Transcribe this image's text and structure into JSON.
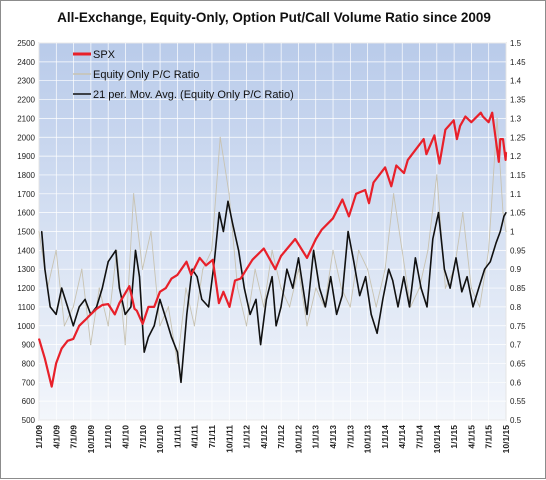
{
  "chart_data": {
    "type": "line",
    "title": "All-Exchange, Equity-Only, Option Put/Call Volume Ratio since 2009",
    "y_left": {
      "min": 500,
      "max": 2500,
      "step": 100
    },
    "y_right": {
      "min": 0.5,
      "max": 1.5,
      "step": 0.05
    },
    "x_start": "2009-01-01",
    "x_end": "2015-10-01",
    "x_tick_labels": [
      "1/1/09",
      "4/1/09",
      "7/1/09",
      "10/1/09",
      "1/1/10",
      "4/1/10",
      "7/1/10",
      "10/1/10",
      "1/1/11",
      "4/1/11",
      "7/1/11",
      "10/1/11",
      "1/1/12",
      "4/1/12",
      "7/1/12",
      "10/1/12",
      "1/1/13",
      "4/1/13",
      "7/1/13",
      "10/1/13",
      "1/1/14",
      "4/1/14",
      "7/1/14",
      "10/1/14",
      "1/1/15",
      "4/1/15",
      "7/1/15",
      "10/1/15"
    ],
    "grid": true,
    "legend_position": "top-left",
    "series": [
      {
        "name": "SPX",
        "axis": "left",
        "color": "#e8202a",
        "x": [
          "2009-01-01",
          "2009-02-01",
          "2009-03-09",
          "2009-04-01",
          "2009-05-01",
          "2009-06-01",
          "2009-07-01",
          "2009-08-01",
          "2009-09-01",
          "2009-10-01",
          "2009-11-01",
          "2009-12-01",
          "2010-01-01",
          "2010-02-05",
          "2010-03-01",
          "2010-04-23",
          "2010-05-20",
          "2010-06-01",
          "2010-07-02",
          "2010-08-01",
          "2010-09-01",
          "2010-10-01",
          "2010-11-01",
          "2010-12-01",
          "2011-01-01",
          "2011-02-18",
          "2011-03-15",
          "2011-04-29",
          "2011-06-01",
          "2011-07-07",
          "2011-08-08",
          "2011-09-01",
          "2011-10-03",
          "2011-11-01",
          "2011-12-01",
          "2012-01-01",
          "2012-02-01",
          "2012-04-01",
          "2012-06-01",
          "2012-07-01",
          "2012-09-14",
          "2012-11-15",
          "2013-01-01",
          "2013-02-01",
          "2013-04-01",
          "2013-05-21",
          "2013-06-24",
          "2013-08-01",
          "2013-09-18",
          "2013-10-08",
          "2013-11-01",
          "2014-01-01",
          "2014-02-03",
          "2014-03-01",
          "2014-04-11",
          "2014-05-01",
          "2014-07-24",
          "2014-08-07",
          "2014-09-18",
          "2014-10-15",
          "2014-11-15",
          "2014-12-29",
          "2015-01-15",
          "2015-02-01",
          "2015-03-01",
          "2015-04-01",
          "2015-05-21",
          "2015-06-01",
          "2015-07-01",
          "2015-07-20",
          "2015-08-24",
          "2015-09-01",
          "2015-09-15",
          "2015-09-29",
          "2015-10-01"
        ],
        "y": [
          931,
          825,
          677,
          800,
          880,
          920,
          930,
          1000,
          1030,
          1060,
          1090,
          1110,
          1115,
          1060,
          1120,
          1210,
          1090,
          1080,
          1010,
          1100,
          1100,
          1180,
          1200,
          1250,
          1270,
          1340,
          1270,
          1360,
          1320,
          1350,
          1120,
          1180,
          1100,
          1240,
          1250,
          1300,
          1350,
          1410,
          1300,
          1370,
          1460,
          1360,
          1460,
          1510,
          1570,
          1670,
          1580,
          1700,
          1720,
          1650,
          1760,
          1840,
          1740,
          1850,
          1810,
          1880,
          1990,
          1910,
          2010,
          1860,
          2040,
          2090,
          1990,
          2060,
          2110,
          2080,
          2130,
          2110,
          2080,
          2130,
          1870,
          1990,
          1990,
          1880,
          1920
        ]
      },
      {
        "name": "Equity Only P/C Ratio",
        "axis": "right",
        "color": "#c8c3b2",
        "x": [
          "2009-01-01",
          "2009-02-15",
          "2009-04-01",
          "2009-05-15",
          "2009-07-01",
          "2009-08-15",
          "2009-10-01",
          "2009-11-15",
          "2010-01-01",
          "2010-02-15",
          "2010-04-01",
          "2010-05-15",
          "2010-07-01",
          "2010-08-15",
          "2010-10-01",
          "2010-11-15",
          "2011-01-01",
          "2011-02-15",
          "2011-04-01",
          "2011-05-15",
          "2011-07-01",
          "2011-08-15",
          "2011-10-01",
          "2011-11-15",
          "2012-01-01",
          "2012-02-15",
          "2012-04-01",
          "2012-05-15",
          "2012-07-01",
          "2012-08-15",
          "2012-10-01",
          "2012-11-15",
          "2013-01-01",
          "2013-02-15",
          "2013-04-01",
          "2013-05-15",
          "2013-07-01",
          "2013-08-15",
          "2013-10-01",
          "2013-11-15",
          "2014-01-01",
          "2014-02-15",
          "2014-04-01",
          "2014-05-15",
          "2014-07-01",
          "2014-08-15",
          "2014-10-01",
          "2014-11-15",
          "2015-01-01",
          "2015-02-15",
          "2015-04-01",
          "2015-05-15",
          "2015-07-01",
          "2015-08-15",
          "2015-09-15",
          "2015-10-01"
        ],
        "y": [
          1.0,
          0.85,
          0.95,
          0.75,
          0.8,
          0.9,
          0.7,
          0.85,
          0.75,
          0.95,
          0.7,
          1.1,
          0.9,
          1.0,
          0.75,
          0.8,
          0.65,
          0.85,
          0.75,
          0.9,
          0.95,
          1.25,
          1.1,
          0.85,
          0.75,
          0.9,
          0.8,
          0.95,
          0.85,
          0.8,
          0.9,
          0.75,
          0.85,
          0.8,
          0.95,
          0.85,
          0.8,
          0.95,
          0.9,
          0.8,
          0.9,
          1.1,
          0.95,
          0.8,
          0.85,
          0.95,
          1.15,
          0.85,
          0.9,
          1.05,
          0.85,
          0.8,
          0.95,
          1.3,
          1.05,
          1.0
        ]
      },
      {
        "name": "21 per. Mov. Avg. (Equity Only P/C Ratio)",
        "axis": "right",
        "color": "#111111",
        "x": [
          "2009-01-15",
          "2009-02-01",
          "2009-03-01",
          "2009-04-01",
          "2009-05-01",
          "2009-06-01",
          "2009-07-01",
          "2009-08-01",
          "2009-09-01",
          "2009-10-01",
          "2009-11-01",
          "2009-12-01",
          "2010-01-01",
          "2010-02-10",
          "2010-03-01",
          "2010-04-01",
          "2010-05-01",
          "2010-05-25",
          "2010-06-15",
          "2010-07-10",
          "2010-08-01",
          "2010-09-01",
          "2010-10-01",
          "2010-11-01",
          "2010-12-01",
          "2011-01-01",
          "2011-01-20",
          "2011-02-20",
          "2011-03-20",
          "2011-04-15",
          "2011-05-10",
          "2011-06-15",
          "2011-07-15",
          "2011-08-10",
          "2011-09-01",
          "2011-09-25",
          "2011-10-20",
          "2011-11-20",
          "2011-12-20",
          "2012-01-20",
          "2012-02-20",
          "2012-03-15",
          "2012-04-15",
          "2012-05-15",
          "2012-06-05",
          "2012-07-01",
          "2012-08-01",
          "2012-09-01",
          "2012-10-01",
          "2012-11-15",
          "2012-12-20",
          "2013-01-20",
          "2013-02-20",
          "2013-03-20",
          "2013-04-20",
          "2013-05-20",
          "2013-06-20",
          "2013-07-20",
          "2013-08-20",
          "2013-09-20",
          "2013-10-20",
          "2013-11-20",
          "2013-12-20",
          "2014-01-20",
          "2014-02-10",
          "2014-03-10",
          "2014-04-10",
          "2014-05-10",
          "2014-06-10",
          "2014-07-10",
          "2014-08-10",
          "2014-09-10",
          "2014-10-10",
          "2014-11-10",
          "2014-12-10",
          "2015-01-10",
          "2015-02-10",
          "2015-03-10",
          "2015-04-10",
          "2015-05-10",
          "2015-06-10",
          "2015-07-10",
          "2015-08-10",
          "2015-09-01",
          "2015-09-20",
          "2015-10-01"
        ],
        "y": [
          1.0,
          0.9,
          0.8,
          0.78,
          0.85,
          0.8,
          0.75,
          0.8,
          0.82,
          0.78,
          0.8,
          0.85,
          0.92,
          0.95,
          0.85,
          0.78,
          0.8,
          0.95,
          0.88,
          0.68,
          0.72,
          0.75,
          0.82,
          0.77,
          0.72,
          0.68,
          0.6,
          0.78,
          0.9,
          0.88,
          0.82,
          0.8,
          0.92,
          1.05,
          1.0,
          1.08,
          1.02,
          0.95,
          0.85,
          0.78,
          0.82,
          0.7,
          0.82,
          0.88,
          0.75,
          0.8,
          0.9,
          0.85,
          0.93,
          0.78,
          0.95,
          0.85,
          0.8,
          0.88,
          0.78,
          0.83,
          1.0,
          0.92,
          0.83,
          0.88,
          0.78,
          0.73,
          0.82,
          0.9,
          0.87,
          0.8,
          0.88,
          0.8,
          0.93,
          0.85,
          0.8,
          0.98,
          1.05,
          0.9,
          0.85,
          0.93,
          0.84,
          0.88,
          0.8,
          0.85,
          0.9,
          0.92,
          0.97,
          1.0,
          1.04,
          1.05
        ]
      }
    ]
  }
}
